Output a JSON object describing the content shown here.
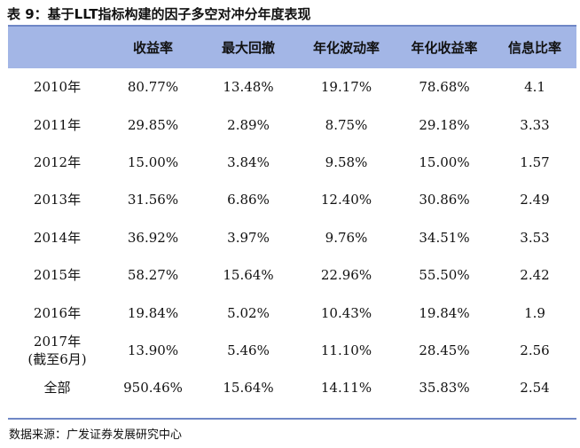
{
  "caption": "表 9：基于LLT指标构建的因子多空对冲分年度表现",
  "table": {
    "headers": [
      "",
      "收益率",
      "最大回撤",
      "年化波动率",
      "年化收益率",
      "信息比率"
    ],
    "rows": [
      {
        "label": "2010年",
        "values": [
          "80.77%",
          "13.48%",
          "19.17%",
          "78.68%",
          "4.1"
        ]
      },
      {
        "label": "2011年",
        "values": [
          "29.85%",
          "2.89%",
          "8.75%",
          "29.18%",
          "3.33"
        ]
      },
      {
        "label": "2012年",
        "values": [
          "15.00%",
          "3.84%",
          "9.58%",
          "15.00%",
          "1.57"
        ]
      },
      {
        "label": "2013年",
        "values": [
          "31.56%",
          "6.86%",
          "12.40%",
          "30.86%",
          "2.49"
        ]
      },
      {
        "label": "2014年",
        "values": [
          "36.92%",
          "3.97%",
          "9.76%",
          "34.51%",
          "3.53"
        ]
      },
      {
        "label": "2015年",
        "values": [
          "58.27%",
          "15.64%",
          "22.96%",
          "55.50%",
          "2.42"
        ]
      },
      {
        "label": "2016年",
        "values": [
          "19.84%",
          "5.02%",
          "10.43%",
          "19.84%",
          "1.9"
        ]
      },
      {
        "label": "2017年",
        "sublabel": "(截至6月)",
        "values": [
          "13.90%",
          "5.46%",
          "11.10%",
          "28.45%",
          "2.56"
        ]
      },
      {
        "label": "全部",
        "values": [
          "950.46%",
          "15.64%",
          "14.11%",
          "35.83%",
          "2.54"
        ]
      }
    ]
  },
  "source_note": "数据来源：广发证券发展研究中心",
  "colors": {
    "header_background": "#a3b6e6",
    "rule": "#6f87c6"
  }
}
